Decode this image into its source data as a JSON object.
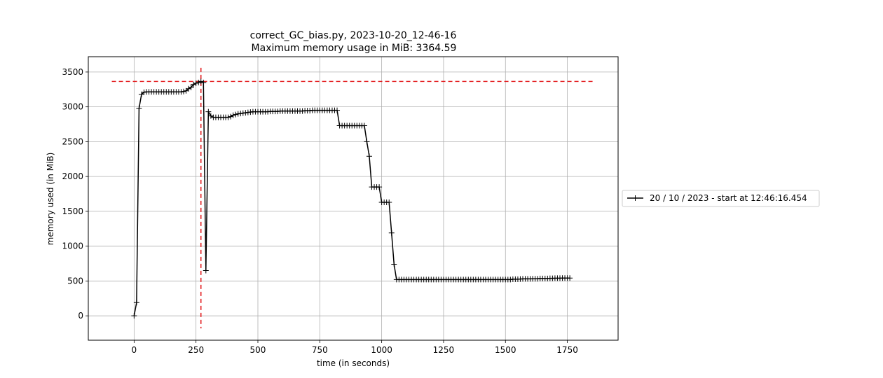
{
  "chart_data": {
    "type": "line",
    "title": "correct_GC_bias.py, 2023-10-20_12-46-16",
    "subtitle": "Maximum memory usage in MiB: 3364.59",
    "xlabel": "time (in seconds)",
    "ylabel": "memory used (in MiB)",
    "xlim": [
      -185,
      1955
    ],
    "ylim": [
      -350,
      3720
    ],
    "xticks": [
      0,
      250,
      500,
      750,
      1000,
      1250,
      1500,
      1750
    ],
    "xtick_labels": [
      "0",
      "250",
      "500",
      "750",
      "1000",
      "1250",
      "1500",
      "1750"
    ],
    "yticks": [
      0,
      500,
      1000,
      1500,
      2000,
      2500,
      3000,
      3500
    ],
    "ytick_labels": [
      "0",
      "500",
      "1000",
      "1500",
      "2000",
      "2500",
      "3000",
      "3500"
    ],
    "grid": true,
    "legend_position": "right",
    "max_memory": 3364.59,
    "max_memory_time": 270,
    "colors": {
      "series": "#000000",
      "reference": "#e31a1c",
      "grid": "#b0b0b0"
    },
    "series": [
      {
        "name": "20 / 10 / 2023 - start at 12:46:16.454",
        "marker": "+",
        "x": [
          0,
          10,
          20,
          30,
          40,
          50,
          60,
          70,
          80,
          90,
          100,
          110,
          120,
          130,
          140,
          150,
          160,
          170,
          180,
          190,
          200,
          210,
          220,
          230,
          240,
          250,
          260,
          270,
          280,
          290,
          300,
          310,
          320,
          330,
          340,
          350,
          360,
          370,
          380,
          390,
          400,
          410,
          420,
          430,
          440,
          450,
          460,
          470,
          480,
          490,
          500,
          510,
          520,
          530,
          540,
          550,
          560,
          570,
          580,
          590,
          600,
          610,
          620,
          630,
          640,
          650,
          660,
          670,
          680,
          690,
          700,
          710,
          720,
          730,
          740,
          750,
          760,
          770,
          780,
          790,
          800,
          810,
          820,
          830,
          840,
          850,
          860,
          870,
          880,
          890,
          900,
          910,
          920,
          930,
          940,
          950,
          960,
          970,
          980,
          990,
          1000,
          1010,
          1020,
          1030,
          1040,
          1050,
          1060,
          1070,
          1080,
          1090,
          1100,
          1110,
          1120,
          1130,
          1140,
          1150,
          1160,
          1170,
          1180,
          1190,
          1200,
          1210,
          1220,
          1230,
          1240,
          1250,
          1260,
          1270,
          1280,
          1290,
          1300,
          1310,
          1320,
          1330,
          1340,
          1350,
          1360,
          1370,
          1380,
          1390,
          1400,
          1410,
          1420,
          1430,
          1440,
          1450,
          1460,
          1470,
          1480,
          1490,
          1500,
          1510,
          1520,
          1530,
          1540,
          1550,
          1560,
          1570,
          1580,
          1590,
          1600,
          1610,
          1620,
          1630,
          1640,
          1650,
          1660,
          1670,
          1680,
          1690,
          1700,
          1710,
          1720,
          1730,
          1740,
          1750,
          1760
        ],
        "y": [
          0,
          190,
          2980,
          3180,
          3210,
          3215,
          3215,
          3215,
          3215,
          3215,
          3215,
          3215,
          3215,
          3215,
          3215,
          3215,
          3215,
          3215,
          3215,
          3215,
          3220,
          3230,
          3260,
          3280,
          3320,
          3340,
          3350,
          3364.59,
          3350,
          650,
          2930,
          2870,
          2850,
          2850,
          2850,
          2850,
          2850,
          2850,
          2850,
          2860,
          2880,
          2890,
          2900,
          2905,
          2910,
          2915,
          2920,
          2925,
          2930,
          2930,
          2930,
          2930,
          2930,
          2930,
          2930,
          2935,
          2935,
          2935,
          2935,
          2940,
          2940,
          2940,
          2940,
          2940,
          2940,
          2940,
          2940,
          2940,
          2940,
          2945,
          2945,
          2945,
          2950,
          2950,
          2950,
          2950,
          2950,
          2950,
          2950,
          2950,
          2950,
          2950,
          2950,
          2730,
          2730,
          2730,
          2730,
          2730,
          2730,
          2730,
          2730,
          2730,
          2730,
          2730,
          2500,
          2290,
          1850,
          1850,
          1850,
          1850,
          1630,
          1630,
          1630,
          1630,
          1190,
          740,
          520,
          520,
          520,
          520,
          520,
          520,
          520,
          520,
          520,
          520,
          520,
          520,
          520,
          520,
          520,
          520,
          520,
          520,
          520,
          520,
          520,
          520,
          520,
          520,
          520,
          520,
          520,
          520,
          520,
          520,
          520,
          520,
          520,
          520,
          520,
          520,
          520,
          520,
          520,
          520,
          520,
          520,
          520,
          520,
          520,
          520,
          520,
          525,
          525,
          525,
          528,
          530,
          530,
          530,
          530,
          532,
          532,
          532,
          535,
          535,
          535,
          535,
          538,
          538,
          540,
          540,
          540,
          542,
          542,
          542,
          542
        ]
      }
    ]
  }
}
